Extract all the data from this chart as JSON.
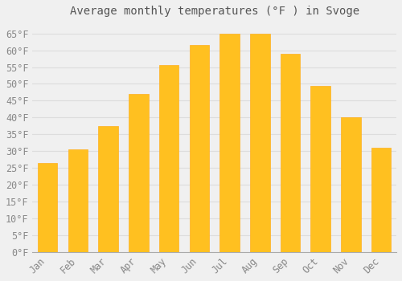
{
  "title": "Average monthly temperatures (°F ) in Svoge",
  "months": [
    "Jan",
    "Feb",
    "Mar",
    "Apr",
    "May",
    "Jun",
    "Jul",
    "Aug",
    "Sep",
    "Oct",
    "Nov",
    "Dec"
  ],
  "values": [
    26.5,
    30.5,
    37.5,
    47.0,
    55.5,
    61.5,
    65.0,
    65.0,
    59.0,
    49.5,
    40.0,
    31.0
  ],
  "bar_color": "#FFC020",
  "bar_edge_color": "#FFB020",
  "background_color": "#F0F0F0",
  "grid_color": "#DDDDDD",
  "text_color": "#888888",
  "ylim": [
    0,
    68
  ],
  "yticks": [
    0,
    5,
    10,
    15,
    20,
    25,
    30,
    35,
    40,
    45,
    50,
    55,
    60,
    65
  ],
  "title_fontsize": 10,
  "tick_fontsize": 8.5,
  "font_family": "monospace",
  "title_color": "#555555"
}
